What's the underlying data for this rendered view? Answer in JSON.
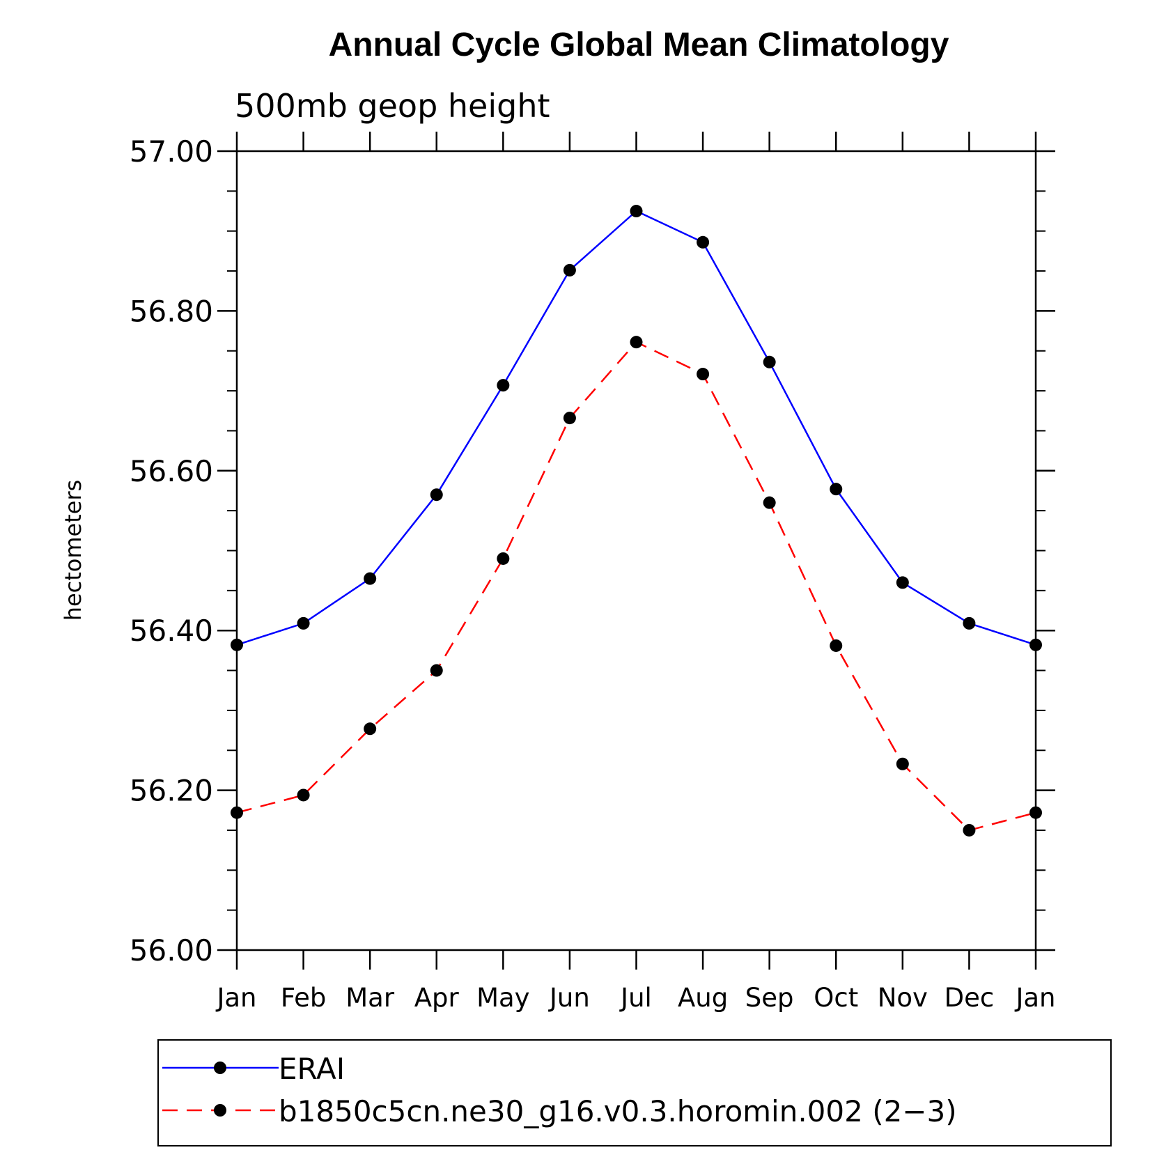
{
  "chart_data": {
    "type": "line",
    "title": "Annual Cycle Global Mean Climatology",
    "subtitle": "500mb geop height",
    "xlabel": "",
    "ylabel": "hectometers",
    "categories": [
      "Jan",
      "Feb",
      "Mar",
      "Apr",
      "May",
      "Jun",
      "Jul",
      "Aug",
      "Sep",
      "Oct",
      "Nov",
      "Dec",
      "Jan"
    ],
    "ylim": [
      56.0,
      57.0
    ],
    "yticks": [
      "56.00",
      "56.20",
      "56.40",
      "56.60",
      "56.80",
      "57.00"
    ],
    "series": [
      {
        "name": "ERAI",
        "color": "#0000ff",
        "style": "solid",
        "marker": "circle",
        "values": [
          56.382,
          56.409,
          56.465,
          56.57,
          56.707,
          56.851,
          56.925,
          56.886,
          56.736,
          56.577,
          56.46,
          56.409,
          56.382
        ]
      },
      {
        "name": "b1850c5cn.ne30_g16.v0.3.horomin.002 (2−3)",
        "color": "#ff0000",
        "style": "dashed",
        "marker": "circle",
        "values": [
          56.172,
          56.194,
          56.277,
          56.35,
          56.49,
          56.666,
          56.761,
          56.721,
          56.56,
          56.381,
          56.233,
          56.15,
          56.172
        ]
      }
    ],
    "legend_position": "bottom"
  }
}
